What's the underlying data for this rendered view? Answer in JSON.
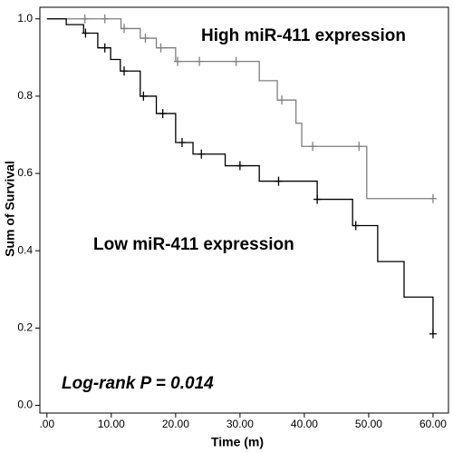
{
  "chart_data": {
    "type": "survival",
    "x_label": "Time (m)",
    "y_label": "Sum of Survival",
    "annotations": [
      "High miR-411 expression",
      "Low miR-411 expression",
      "Log-rank P = 0.014"
    ],
    "xlim": [
      -1.1,
      62.4
    ],
    "ylim": [
      -0.02,
      1.03
    ],
    "xticks": [
      {
        "value": 0,
        "label": ".00"
      },
      {
        "value": 10,
        "label": "10.00"
      },
      {
        "value": 20,
        "label": "20.00"
      },
      {
        "value": 30,
        "label": "30.00"
      },
      {
        "value": 40,
        "label": "40.00"
      },
      {
        "value": 50,
        "label": "50.00"
      },
      {
        "value": 60,
        "label": "60.00"
      }
    ],
    "yticks": [
      {
        "value": 0,
        "label": "0.0"
      },
      0.2,
      0.4,
      0.6,
      0.8,
      {
        "value": 1,
        "label": "1.0"
      }
    ],
    "series": [
      {
        "color": "#7f7f7f",
        "x": [
          0,
          11.5,
          14.5,
          17,
          20,
          33,
          35.8,
          38.7,
          39.6,
          49.7,
          60
        ],
        "values": [
          1.0,
          0.975,
          0.95,
          0.925,
          0.89,
          0.84,
          0.79,
          0.73,
          0.67,
          0.535,
          0.535
        ],
        "censor_x": [
          5.9,
          9,
          12,
          15.3,
          17.7,
          20.3,
          23.7,
          29.4,
          36.5,
          41.3,
          48.5,
          60
        ],
        "censor_values": [
          1.0,
          1.0,
          0.975,
          0.95,
          0.925,
          0.89,
          0.89,
          0.89,
          0.79,
          0.67,
          0.67,
          0.535
        ]
      },
      {
        "color": "#000000",
        "x": [
          0,
          3,
          5.7,
          7.9,
          9.9,
          11.4,
          14.5,
          17,
          20,
          22.7,
          27.7,
          33,
          42,
          47.5,
          51.4,
          55.5,
          60
        ],
        "values": [
          1.0,
          0.985,
          0.963,
          0.925,
          0.895,
          0.865,
          0.8,
          0.755,
          0.68,
          0.65,
          0.62,
          0.58,
          0.533,
          0.465,
          0.372,
          0.28,
          0.185
        ],
        "censor_x": [
          6,
          9,
          12,
          15,
          18,
          21,
          24,
          30,
          36,
          42,
          48,
          60
        ],
        "censor_values": [
          0.963,
          0.925,
          0.865,
          0.8,
          0.755,
          0.68,
          0.65,
          0.62,
          0.58,
          0.533,
          0.465,
          0.185
        ]
      }
    ]
  }
}
